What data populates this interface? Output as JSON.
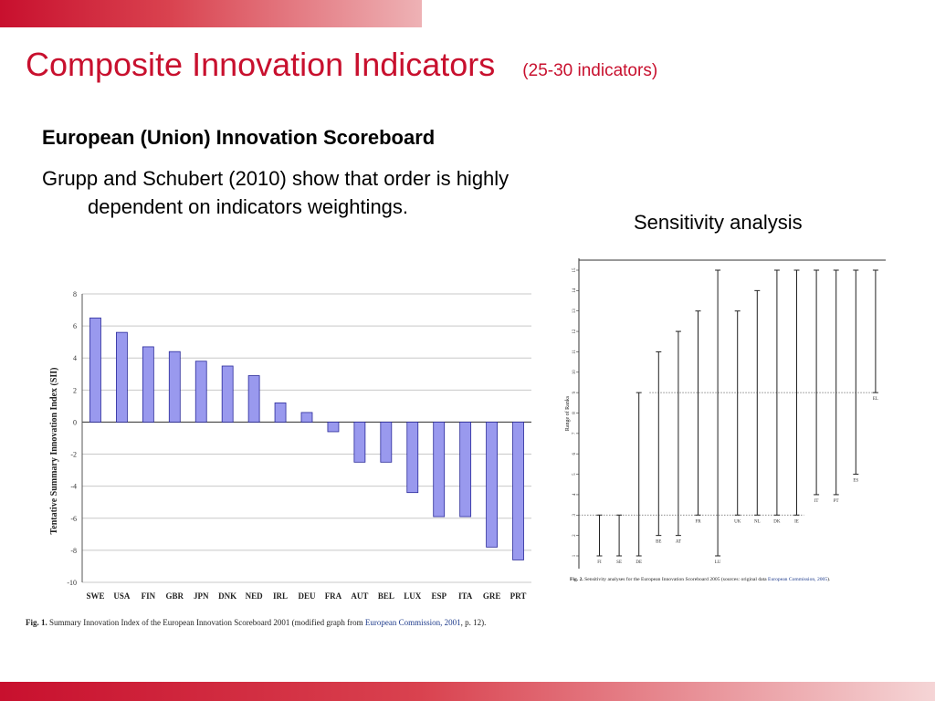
{
  "slide": {
    "title": "Composite Innovation Indicators",
    "title_note": "(25-30 indicators)",
    "heading": "European (Union) Innovation Scoreboard",
    "body": "Grupp and Schubert (2010) show that order is highly dependent on indicators weightings.",
    "sensitivity_label": "Sensitivity analysis"
  },
  "colors": {
    "accent": "#c8102e",
    "bar_fill": "#9999ee",
    "bar_stroke": "#2a2a9a",
    "caption_link": "#1f3c8c"
  },
  "chart_data": [
    {
      "type": "bar",
      "categories": [
        "SWE",
        "USA",
        "FIN",
        "GBR",
        "JPN",
        "DNK",
        "NED",
        "IRL",
        "DEU",
        "FRA",
        "AUT",
        "BEL",
        "LUX",
        "ESP",
        "ITA",
        "GRE",
        "PRT"
      ],
      "values": [
        6.5,
        5.6,
        4.7,
        4.4,
        3.8,
        3.5,
        2.9,
        1.2,
        0.6,
        -0.6,
        -2.5,
        -2.5,
        -4.4,
        -5.9,
        -5.9,
        -7.8,
        -8.6
      ],
      "ylabel": "Tentative Summary Innovation Index (SII)",
      "ylim": [
        -10,
        8
      ],
      "yticks": [
        "8",
        "6",
        "4",
        "2",
        "0",
        "-2",
        "-4",
        "-6",
        "-8",
        "-10"
      ],
      "grid": true,
      "caption_label": "Fig. 1.",
      "caption_text": "Summary Innovation Index of the European Innovation Scoreboard 2001 (modified graph from",
      "caption_link": "European Commission, 2001",
      "caption_end": ", p. 12)."
    },
    {
      "type": "range",
      "ylabel": "Range of Ranks",
      "ylim": [
        1,
        15
      ],
      "yticks": [
        "1",
        "2",
        "3",
        "4",
        "5",
        "6",
        "7",
        "8",
        "9",
        "10",
        "11",
        "12",
        "13",
        "14",
        "15"
      ],
      "reference_lines": [
        3,
        9
      ],
      "items": [
        {
          "label": "FI",
          "min": 1,
          "max": 3
        },
        {
          "label": "SE",
          "min": 1,
          "max": 3
        },
        {
          "label": "DE",
          "min": 1,
          "max": 9
        },
        {
          "label": "BE",
          "min": 2,
          "max": 11
        },
        {
          "label": "AT",
          "min": 2,
          "max": 12
        },
        {
          "label": "FR",
          "min": 3,
          "max": 13
        },
        {
          "label": "LU",
          "min": 1,
          "max": 15
        },
        {
          "label": "UK",
          "min": 3,
          "max": 13
        },
        {
          "label": "NL",
          "min": 3,
          "max": 14
        },
        {
          "label": "DK",
          "min": 3,
          "max": 15
        },
        {
          "label": "IE",
          "min": 3,
          "max": 15
        },
        {
          "label": "IT",
          "min": 4,
          "max": 15
        },
        {
          "label": "PT",
          "min": 4,
          "max": 15
        },
        {
          "label": "ES",
          "min": 5,
          "max": 15
        },
        {
          "label": "EL",
          "min": 9,
          "max": 15
        }
      ],
      "caption_label": "Fig. 2.",
      "caption_text": "Sensitivity analyses for the European Innovation Scoreboard 2005 (sources: original data",
      "caption_link": "European Commission, 2005",
      "caption_end": ")."
    }
  ]
}
